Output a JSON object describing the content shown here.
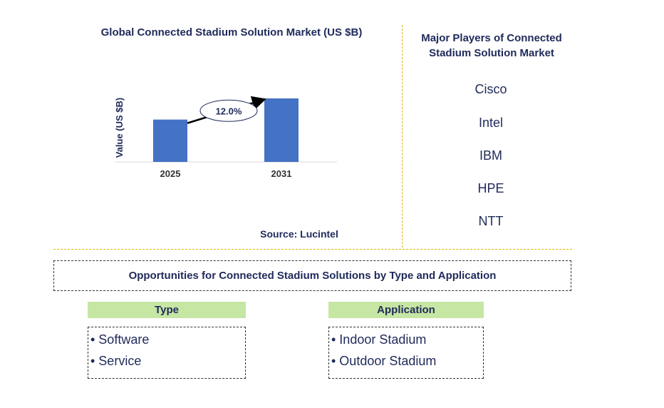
{
  "chart_data": {
    "type": "bar",
    "title": "Global Connected Stadium Solution Market (US $B)",
    "ylabel": "Value (US $B)",
    "categories": [
      "2025",
      "2031"
    ],
    "values": [
      1.0,
      1.5
    ],
    "ylim": [
      0,
      1.6
    ],
    "annotation": "12.0%",
    "bar_color": "#4472c4",
    "source": "Source: Lucintel"
  },
  "players": {
    "title_line1": "Major Players of Connected",
    "title_line2": "Stadium Solution Market",
    "items": [
      "Cisco",
      "Intel",
      "IBM",
      "HPE",
      "NTT"
    ]
  },
  "opportunities": {
    "title": "Opportunities for Connected Stadium Solutions by Type and Application",
    "type": {
      "header": "Type",
      "items": [
        "• Software",
        "• Service"
      ]
    },
    "application": {
      "header": "Application",
      "items": [
        "• Indoor Stadium",
        "• Outdoor Stadium"
      ]
    }
  }
}
